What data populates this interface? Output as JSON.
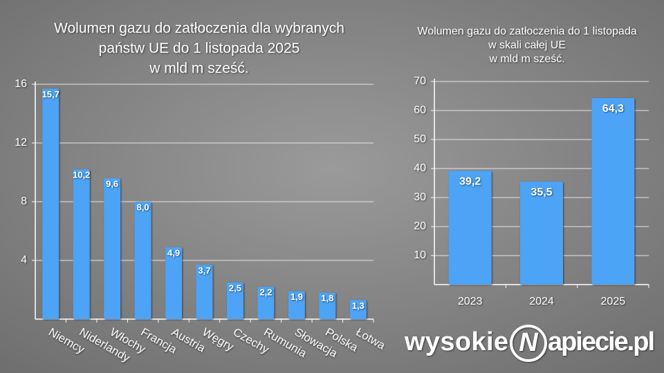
{
  "chart_data": [
    {
      "type": "bar",
      "title": [
        "Wolumen gazu do zatłoczenia dla wybranych",
        "państw UE do 1 listopada 2025",
        "w mld m sześć."
      ],
      "categories": [
        "Niemcy",
        "Niderlandy",
        "Włochy",
        "Francja",
        "Austria",
        "Węgry",
        "Czechy",
        "Rumunia",
        "Słowacja",
        "Polska",
        "Łotwa"
      ],
      "values": [
        15.7,
        10.2,
        9.6,
        8.0,
        4.9,
        3.7,
        2.5,
        2.2,
        1.9,
        1.8,
        1.3
      ],
      "value_labels": [
        "15,7",
        "10,2",
        "9,6",
        "8,0",
        "4,9",
        "3,7",
        "2,5",
        "2,2",
        "1,9",
        "1,8",
        "1,3"
      ],
      "color": "#4da3f5",
      "ylim": [
        0,
        16
      ],
      "yticks": [
        4,
        8,
        12,
        16
      ],
      "grid": true
    },
    {
      "type": "bar",
      "title": [
        "Wolumen gazu do zatłoczenia do 1 listopada",
        "w skali całej UE",
        "w mld m sześć."
      ],
      "categories": [
        "2023",
        "2024",
        "2025"
      ],
      "values": [
        39.2,
        35.5,
        64.3
      ],
      "value_labels": [
        "39,2",
        "35,5",
        "64,3"
      ],
      "color": "#4da3f5",
      "ylim": [
        0,
        70
      ],
      "yticks": [
        10,
        20,
        30,
        40,
        50,
        60,
        70
      ],
      "grid": true
    }
  ],
  "logo": {
    "left": "wysokie",
    "mark": "N",
    "right": "apiecie.pl"
  }
}
